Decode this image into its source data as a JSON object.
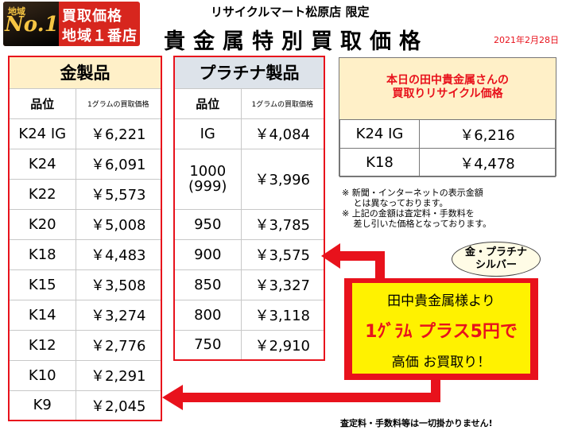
{
  "badge": {
    "area": "地域",
    "no1": "No.1",
    "line1": "買取価格",
    "line2": "地域１番店"
  },
  "subhead": "リサイクルマート松原店 限定",
  "title": "貴金属特別買取価格",
  "date": "2021年2月28日",
  "gold": {
    "category": "金製品",
    "col_purity": "品位",
    "col_price": "1グラムの買取価格",
    "rows": [
      {
        "purity": "K24 IG",
        "price": "￥6,221"
      },
      {
        "purity": "K24",
        "price": "￥6,091"
      },
      {
        "purity": "K22",
        "price": "￥5,573"
      },
      {
        "purity": "K20",
        "price": "￥5,008"
      },
      {
        "purity": "K18",
        "price": "￥4,483"
      },
      {
        "purity": "K15",
        "price": "￥3,508"
      },
      {
        "purity": "K14",
        "price": "￥3,274"
      },
      {
        "purity": "K12",
        "price": "￥2,776"
      },
      {
        "purity": "K10",
        "price": "￥2,291"
      },
      {
        "purity": "K9",
        "price": "￥2,045"
      }
    ]
  },
  "platinum": {
    "category": "プラチナ製品",
    "col_purity": "品位",
    "col_price": "1グラムの買取価格",
    "rows": [
      {
        "purity": "IG",
        "price": "￥4,084"
      },
      {
        "purity": "1000\n(999)",
        "price": "￥3,996"
      },
      {
        "purity": "950",
        "price": "￥3,785"
      },
      {
        "purity": "900",
        "price": "￥3,575"
      },
      {
        "purity": "850",
        "price": "￥3,327"
      },
      {
        "purity": "800",
        "price": "￥3,118"
      },
      {
        "purity": "750",
        "price": "￥2,910"
      }
    ]
  },
  "tanaka": {
    "heading_line1": "本日の田中貴金属さんの",
    "heading_line2": "買取りリサイクル価格",
    "rows": [
      {
        "purity": "K24 IG",
        "price": "￥6,216"
      },
      {
        "purity": "K18",
        "price": "￥4,478"
      }
    ]
  },
  "notes": [
    "※ 新聞・インターネットの表示金額",
    "　 とは異なっております。",
    "※ 上記の金額は査定料・手数料を",
    "　 差し引いた価格となっております。"
  ],
  "bubble": {
    "line1": "金・プラチナ",
    "line2": "シルバー"
  },
  "promo": {
    "line1": "田中貴金属様より",
    "line2": "1ｸﾞﾗﾑ プラス5円で",
    "line3": "高価 お買取り！"
  },
  "footer": "査定料・手数料等は一切掛かりません!",
  "colors": {
    "red": "#e8121c",
    "yellow": "#fff200",
    "gold_header": "#fff0c8",
    "platinum_header": "#dde3ea"
  }
}
